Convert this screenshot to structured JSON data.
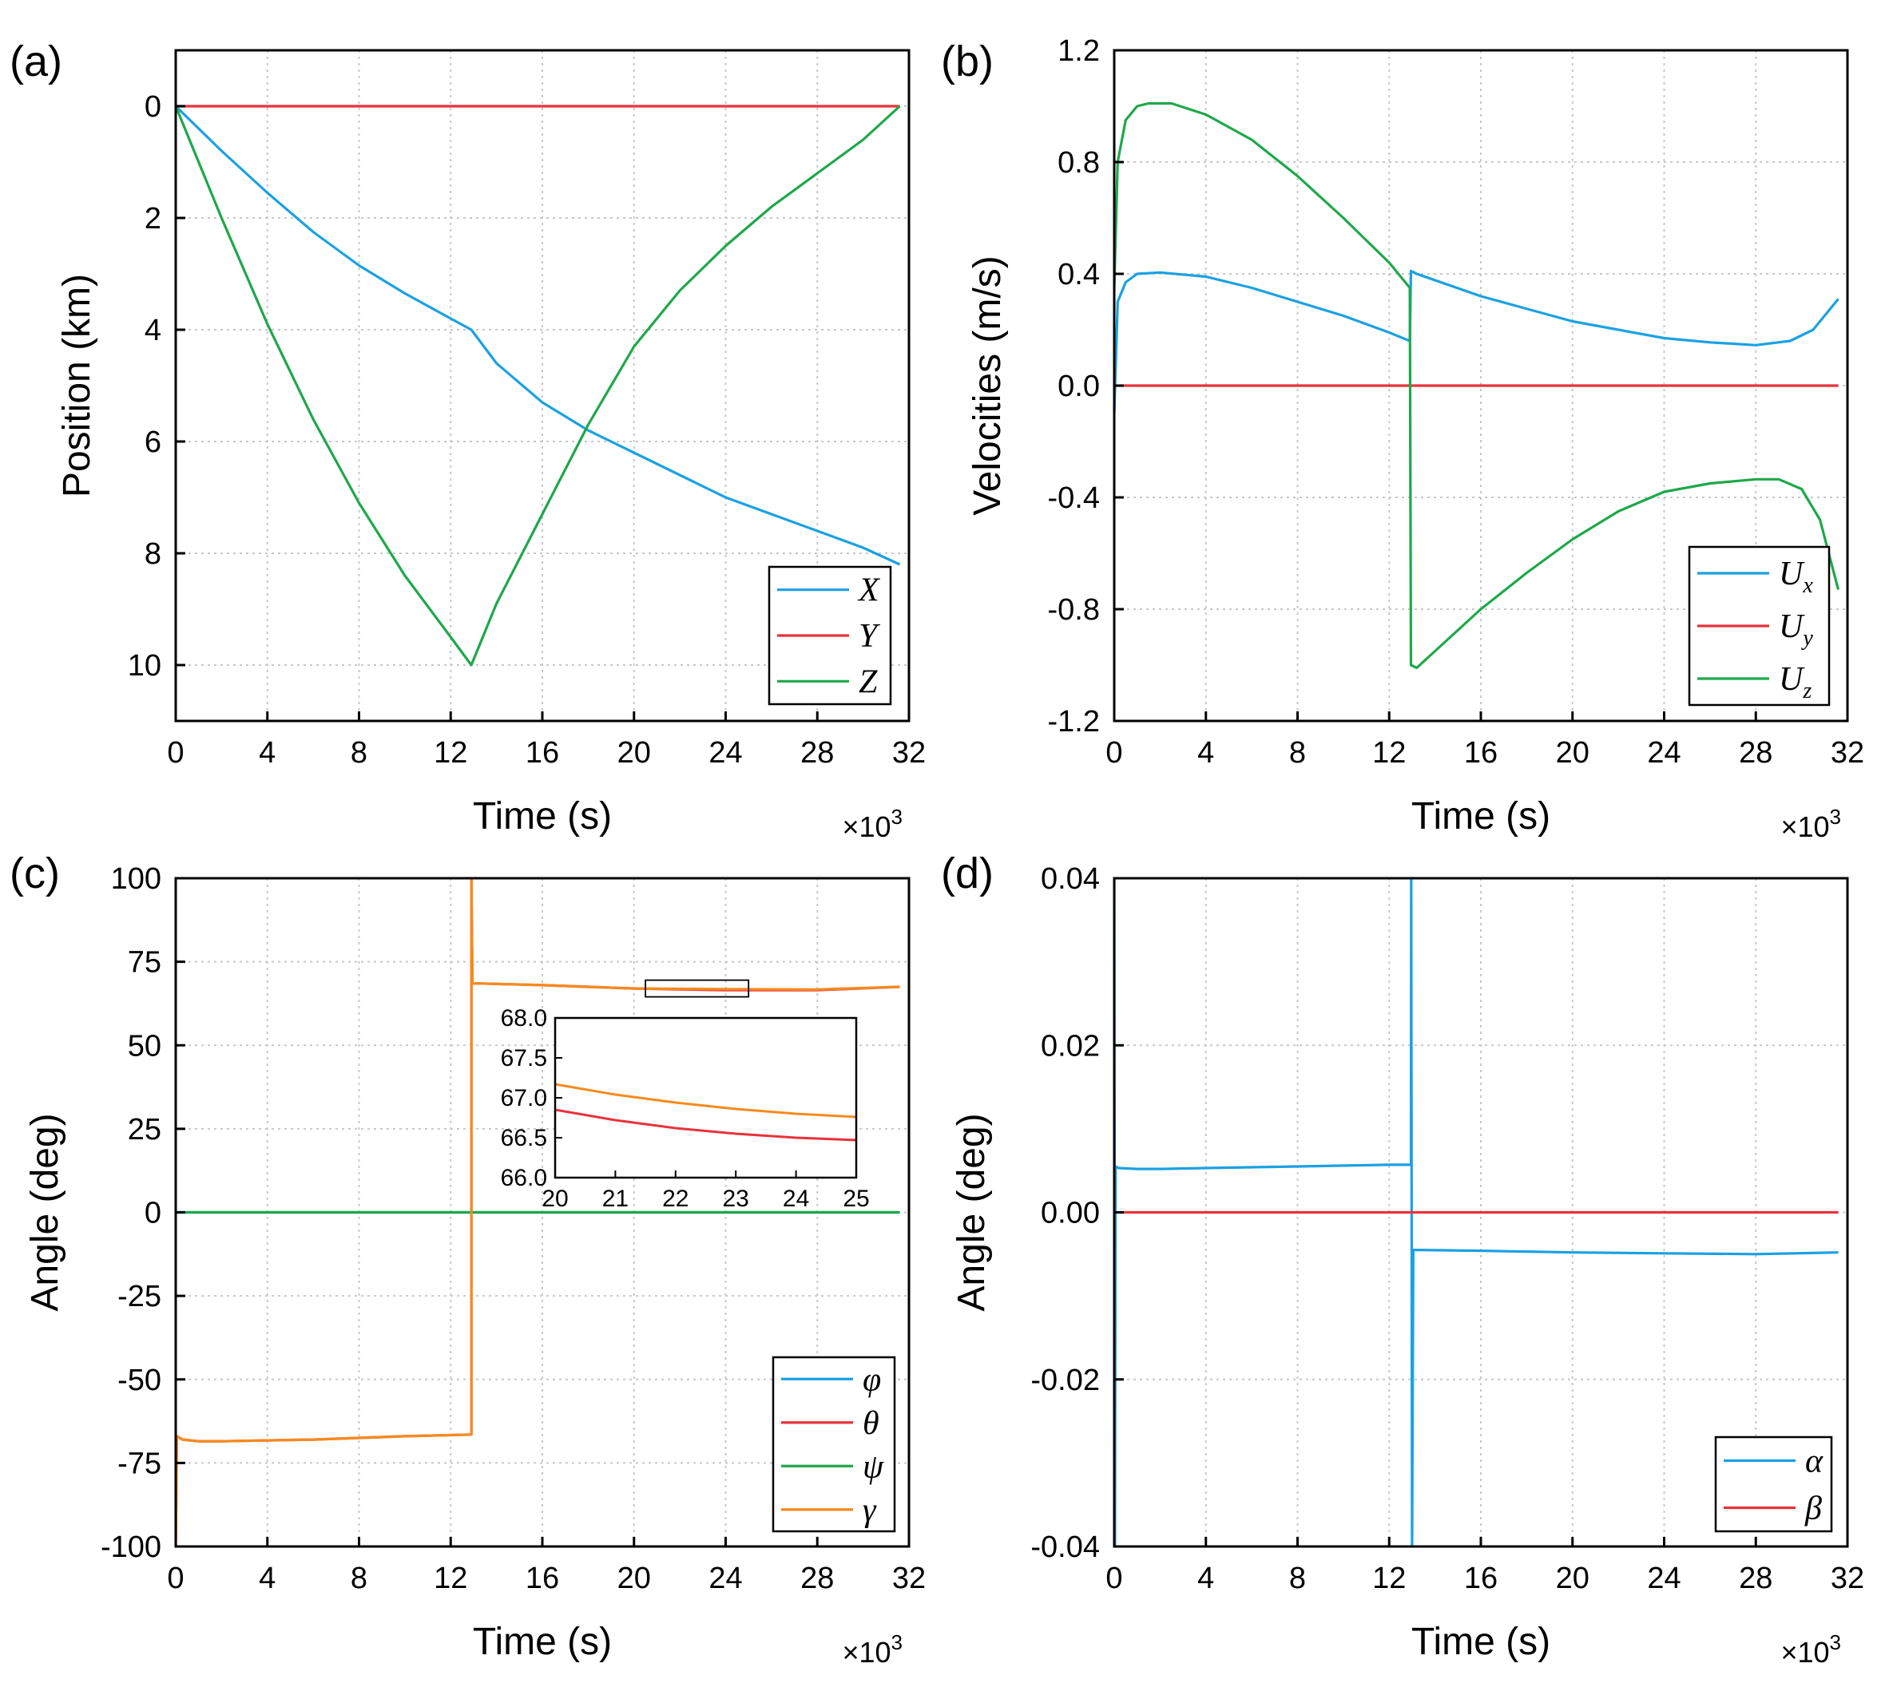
{
  "chart_data": [
    {
      "panel": "(a)",
      "type": "line",
      "xlabel": "Time (s)",
      "x_multiplier": "×10",
      "x_multiplier_exp": "3",
      "ylabel": "Position (km)",
      "xlim": [
        0,
        32
      ],
      "ylim": [
        11,
        -1
      ],
      "y_inverted": true,
      "xticks": [
        0,
        4,
        8,
        12,
        16,
        20,
        24,
        28,
        32
      ],
      "yticks": [
        0,
        2,
        4,
        6,
        8,
        10
      ],
      "grid": true,
      "legend_position": "bottom-right",
      "series": [
        {
          "name": "X",
          "color": "#1BA1E2",
          "x": [
            0,
            2,
            4,
            6,
            8,
            10,
            12,
            12.9,
            14,
            16,
            18,
            20,
            22,
            24,
            26,
            28,
            30,
            31.6
          ],
          "y": [
            0,
            0.8,
            1.55,
            2.25,
            2.85,
            3.35,
            3.8,
            4.0,
            4.6,
            5.3,
            5.8,
            6.2,
            6.6,
            7.0,
            7.3,
            7.6,
            7.9,
            8.2
          ]
        },
        {
          "name": "Y",
          "color": "#E8323C",
          "x": [
            0,
            31.6
          ],
          "y": [
            0,
            0
          ]
        },
        {
          "name": "Z",
          "color": "#1EA84A",
          "x": [
            0,
            2,
            4,
            6,
            8,
            10,
            12,
            12.9,
            14,
            16,
            18,
            20,
            22,
            24,
            26,
            28,
            30,
            31.6
          ],
          "y": [
            0,
            2.0,
            3.9,
            5.6,
            7.1,
            8.4,
            9.5,
            10.0,
            8.9,
            7.3,
            5.7,
            4.3,
            3.3,
            2.5,
            1.8,
            1.2,
            0.6,
            0
          ]
        }
      ]
    },
    {
      "panel": "(b)",
      "type": "line",
      "xlabel": "Time (s)",
      "x_multiplier": "×10",
      "x_multiplier_exp": "3",
      "ylabel": "Velocities (m/s)",
      "xlim": [
        0,
        32
      ],
      "ylim": [
        -1.2,
        1.2
      ],
      "xticks": [
        0,
        4,
        8,
        12,
        16,
        20,
        24,
        28,
        32
      ],
      "yticks": [
        "1.2",
        "0.8",
        "0.4",
        "0.0",
        "-0.4",
        "-0.8",
        "-1.2"
      ],
      "grid": true,
      "legend_position": "bottom-right",
      "series": [
        {
          "name": "U",
          "subscript": "x",
          "color": "#1BA1E2",
          "x": [
            0,
            0.15,
            0.5,
            1.0,
            2.0,
            4.0,
            6.0,
            8.0,
            10.0,
            12.0,
            12.9,
            12.95,
            13.2,
            16,
            20,
            24,
            26,
            28,
            29.5,
            30.5,
            31.6
          ],
          "y": [
            -0.1,
            0.3,
            0.37,
            0.4,
            0.405,
            0.39,
            0.35,
            0.3,
            0.25,
            0.19,
            0.16,
            0.41,
            0.4,
            0.32,
            0.23,
            0.17,
            0.155,
            0.145,
            0.16,
            0.2,
            0.31
          ]
        },
        {
          "name": "U",
          "subscript": "y",
          "color": "#E8323C",
          "x": [
            0,
            31.6
          ],
          "y": [
            0,
            0
          ]
        },
        {
          "name": "U",
          "subscript": "z",
          "color": "#1EA84A",
          "x": [
            0,
            0.15,
            0.5,
            1.0,
            1.5,
            2.5,
            4.0,
            6.0,
            8.0,
            10.0,
            12.0,
            12.9,
            12.95,
            13.2,
            14,
            16,
            18,
            20,
            22,
            24,
            26,
            28,
            29,
            30,
            30.8,
            31.6
          ],
          "y": [
            0.35,
            0.8,
            0.95,
            1.0,
            1.01,
            1.01,
            0.97,
            0.88,
            0.75,
            0.6,
            0.44,
            0.35,
            -1.0,
            -1.01,
            -0.95,
            -0.8,
            -0.67,
            -0.55,
            -0.45,
            -0.38,
            -0.35,
            -0.335,
            -0.335,
            -0.37,
            -0.48,
            -0.73
          ]
        }
      ]
    },
    {
      "panel": "(c)",
      "type": "line",
      "xlabel": "Time (s)",
      "x_multiplier": "×10",
      "x_multiplier_exp": "3",
      "ylabel": "Angle (deg)",
      "xlim": [
        0,
        32
      ],
      "ylim": [
        -100,
        100
      ],
      "xticks": [
        0,
        4,
        8,
        12,
        16,
        20,
        24,
        28,
        32
      ],
      "yticks": [
        "100",
        "75",
        "50",
        "25",
        "0",
        "-25",
        "-50",
        "-75",
        "-100"
      ],
      "grid": true,
      "legend_position": "bottom-right",
      "series": [
        {
          "name": "φ",
          "color": "#1BA1E2",
          "x": [
            0,
            31.6
          ],
          "y": [
            0,
            0
          ]
        },
        {
          "name": "θ",
          "color": "#E8323C",
          "x": [
            0,
            0.05,
            0.3,
            1.0,
            2.0,
            6.0,
            10.0,
            12.9,
            12.9,
            12.95,
            13.3,
            16,
            20,
            24,
            28,
            31.6
          ],
          "y": [
            -100,
            -67,
            -68,
            -68.5,
            -68.5,
            -68,
            -67,
            -66.5,
            100,
            68.5,
            68.5,
            68,
            67,
            66.5,
            66.5,
            67.5
          ]
        },
        {
          "name": "ψ",
          "color": "#1EA84A",
          "x": [
            0,
            31.6
          ],
          "y": [
            0,
            0
          ]
        },
        {
          "name": "γ",
          "color": "#F68A1E",
          "x": [
            0,
            0.05,
            0.3,
            1.0,
            2.0,
            6.0,
            10.0,
            12.9,
            12.9,
            12.95,
            13.3,
            16,
            20,
            24,
            28,
            31.6
          ],
          "y": [
            -100,
            -67,
            -68,
            -68.5,
            -68.5,
            -68,
            -67,
            -66.5,
            100,
            68.5,
            68.5,
            68,
            67,
            66.8,
            66.7,
            67.5
          ]
        }
      ],
      "zoom_box": {
        "x": [
          20.5,
          25
        ],
        "y": [
          64.5,
          69.5
        ]
      },
      "inset": {
        "xlim": [
          20,
          25
        ],
        "ylim": [
          66.0,
          68.0
        ],
        "xticks": [
          "20",
          "21",
          "22",
          "23",
          "24",
          "25"
        ],
        "yticks": [
          "68.0",
          "67.5",
          "67.0",
          "66.5",
          "66.0"
        ],
        "series": [
          {
            "color": "#F68A1E",
            "x": [
              20,
              21,
              22,
              23,
              24,
              25
            ],
            "y": [
              67.17,
              67.04,
              66.94,
              66.86,
              66.8,
              66.76
            ]
          },
          {
            "color": "#E8323C",
            "x": [
              20,
              21,
              22,
              23,
              24,
              25
            ],
            "y": [
              66.85,
              66.72,
              66.62,
              66.55,
              66.5,
              66.47
            ]
          }
        ]
      }
    },
    {
      "panel": "(d)",
      "type": "line",
      "xlabel": "Time (s)",
      "x_multiplier": "×10",
      "x_multiplier_exp": "3",
      "ylabel": "Angle (deg)",
      "xlim": [
        0,
        32
      ],
      "ylim": [
        -0.04,
        0.04
      ],
      "xticks": [
        0,
        4,
        8,
        12,
        16,
        20,
        24,
        28,
        32
      ],
      "yticks": [
        "0.04",
        "0.02",
        "0.00",
        "-0.02",
        "-0.04"
      ],
      "grid": true,
      "legend_position": "bottom-right",
      "series": [
        {
          "name": "α",
          "color": "#1BA1E2",
          "x": [
            0,
            0.03,
            0.06,
            0.2,
            1.0,
            2.0,
            4.0,
            8.0,
            12.0,
            12.95,
            12.96,
            13.0,
            13.05,
            13.3,
            16,
            20,
            24,
            28,
            31.6
          ],
          "y": [
            0.04,
            -0.04,
            0.0055,
            0.0053,
            0.0052,
            0.0052,
            0.0053,
            0.0055,
            0.0057,
            0.0057,
            0.04,
            -0.04,
            -0.0045,
            -0.0045,
            -0.0046,
            -0.0048,
            -0.0049,
            -0.005,
            -0.0048
          ]
        },
        {
          "name": "β",
          "color": "#E8323C",
          "x": [
            0,
            31.6
          ],
          "y": [
            0,
            0
          ]
        }
      ]
    }
  ]
}
